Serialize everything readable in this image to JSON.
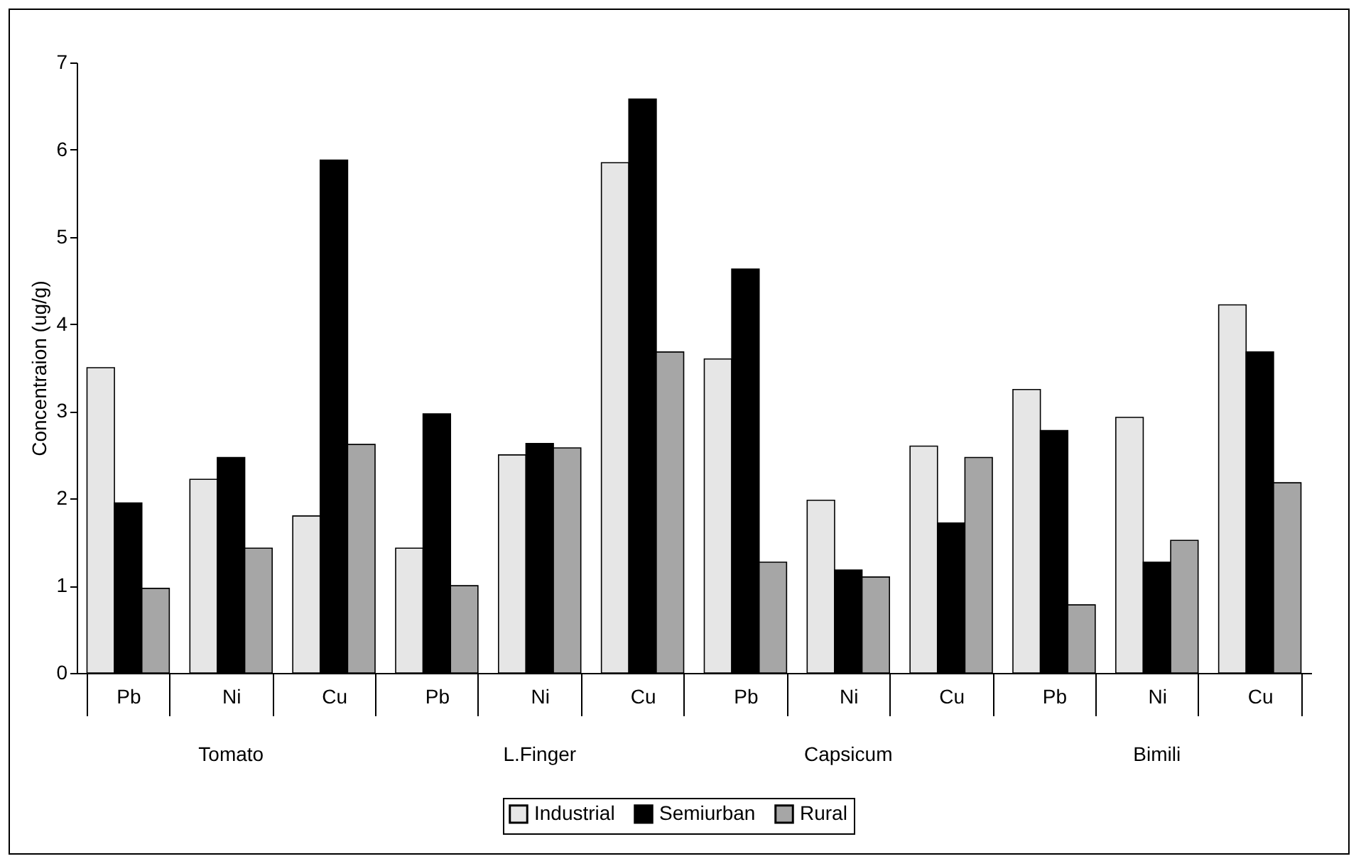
{
  "chart_data": {
    "type": "bar",
    "ylabel": "Concentraion (ug/g)",
    "categories": [
      "Pb",
      "Ni",
      "Cu",
      "Pb",
      "Ni",
      "Cu",
      "Pb",
      "Ni",
      "Cu",
      "Pb",
      "Ni",
      "Cu"
    ],
    "annotations": [
      "Tomato",
      "L.Finger",
      "Capsicum",
      "Bimili"
    ],
    "series": [
      {
        "name": "Industrial",
        "color": "#e6e6e6",
        "values": [
          3.5,
          2.22,
          1.8,
          1.43,
          2.5,
          5.85,
          3.6,
          1.98,
          2.6,
          3.25,
          2.93,
          4.22
        ]
      },
      {
        "name": "Semiurban",
        "color": "#000000",
        "values": [
          1.95,
          2.47,
          5.88,
          2.97,
          2.63,
          6.58,
          4.63,
          1.18,
          1.72,
          2.78,
          1.27,
          3.68
        ]
      },
      {
        "name": "Rural",
        "color": "#a6a6a6",
        "values": [
          0.97,
          1.43,
          2.62,
          1.0,
          2.58,
          3.68,
          1.27,
          1.1,
          2.47,
          0.78,
          1.52,
          2.18
        ]
      }
    ],
    "ylim": [
      0,
      7
    ],
    "yticks": [
      0,
      1,
      2,
      3,
      4,
      5,
      6,
      7
    ],
    "grid": false,
    "legend": "bottom"
  }
}
